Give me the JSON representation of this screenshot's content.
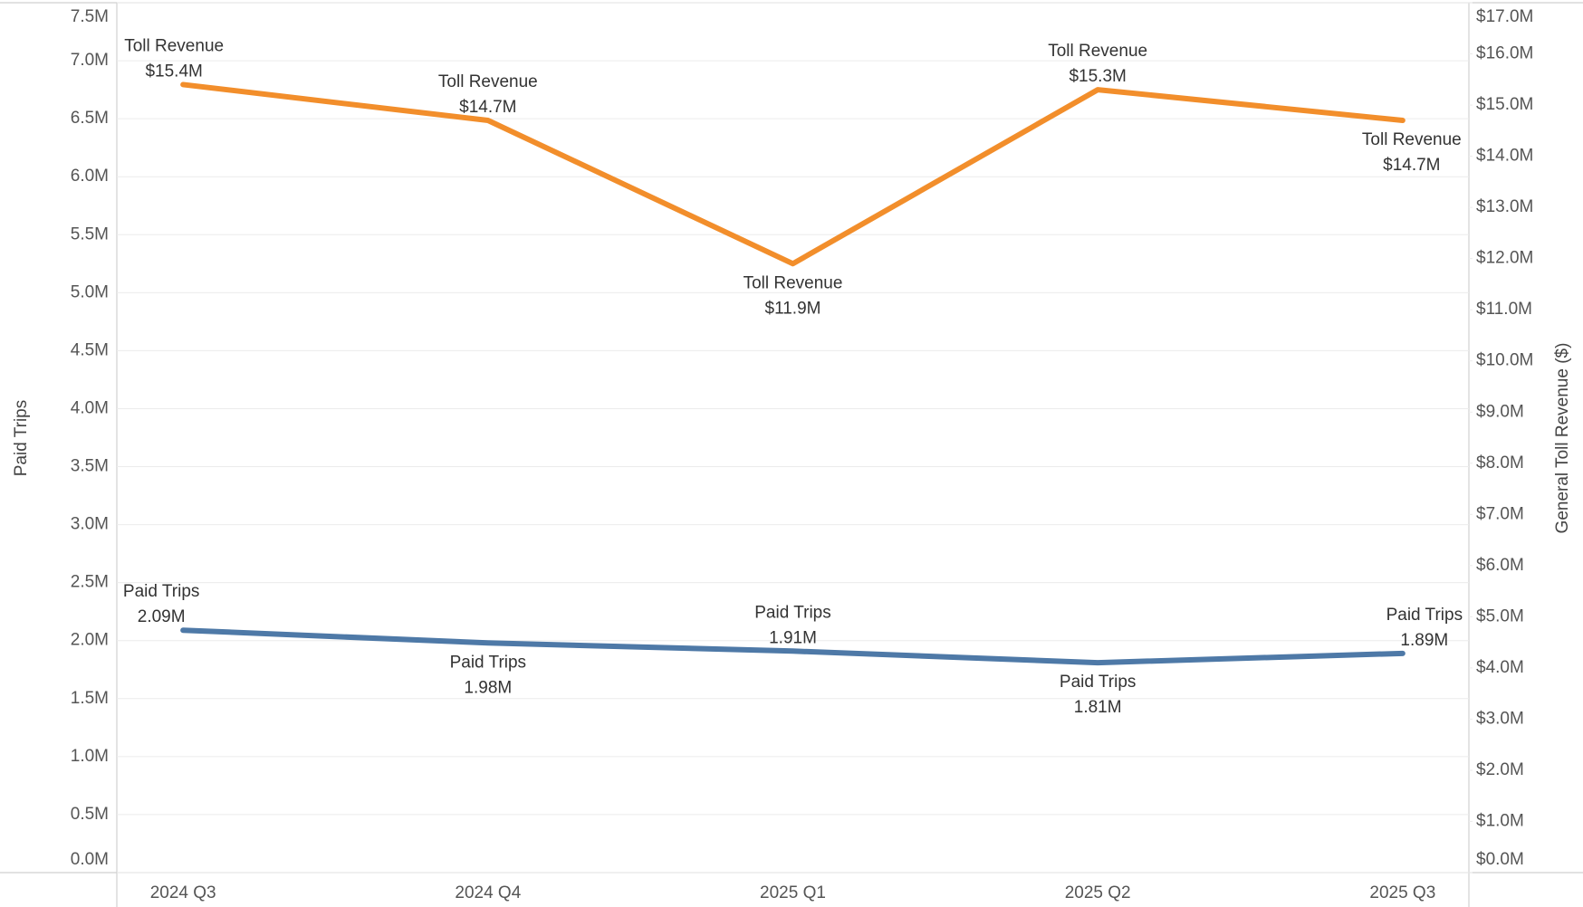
{
  "chart_data": {
    "type": "line",
    "categories": [
      "2024 Q3",
      "2024 Q4",
      "2025 Q1",
      "2025 Q2",
      "2025 Q3"
    ],
    "ylabel": "Paid Trips",
    "y2label": "General Toll Revenue ($)",
    "ylim": [
      0,
      7500000
    ],
    "yticks": [
      {
        "value": 0,
        "label": "0.0M"
      },
      {
        "value": 500000,
        "label": "0.5M"
      },
      {
        "value": 1000000,
        "label": "1.0M"
      },
      {
        "value": 1500000,
        "label": "1.5M"
      },
      {
        "value": 2000000,
        "label": "2.0M"
      },
      {
        "value": 2500000,
        "label": "2.5M"
      },
      {
        "value": 3000000,
        "label": "3.0M"
      },
      {
        "value": 3500000,
        "label": "3.5M"
      },
      {
        "value": 4000000,
        "label": "4.0M"
      },
      {
        "value": 4500000,
        "label": "4.5M"
      },
      {
        "value": 5000000,
        "label": "5.0M"
      },
      {
        "value": 5500000,
        "label": "5.5M"
      },
      {
        "value": 6000000,
        "label": "6.0M"
      },
      {
        "value": 6500000,
        "label": "6.5M"
      },
      {
        "value": 7000000,
        "label": "7.0M"
      },
      {
        "value": 7500000,
        "label": "7.5M"
      }
    ],
    "y2lim": [
      0,
      17000000
    ],
    "y2ticks": [
      {
        "value": 0,
        "label": "$0.0M"
      },
      {
        "value": 1000000,
        "label": "$1.0M"
      },
      {
        "value": 2000000,
        "label": "$2.0M"
      },
      {
        "value": 3000000,
        "label": "$3.0M"
      },
      {
        "value": 4000000,
        "label": "$4.0M"
      },
      {
        "value": 5000000,
        "label": "$5.0M"
      },
      {
        "value": 6000000,
        "label": "$6.0M"
      },
      {
        "value": 7000000,
        "label": "$7.0M"
      },
      {
        "value": 8000000,
        "label": "$8.0M"
      },
      {
        "value": 9000000,
        "label": "$9.0M"
      },
      {
        "value": 10000000,
        "label": "$10.0M"
      },
      {
        "value": 11000000,
        "label": "$11.0M"
      },
      {
        "value": 12000000,
        "label": "$12.0M"
      },
      {
        "value": 13000000,
        "label": "$13.0M"
      },
      {
        "value": 14000000,
        "label": "$14.0M"
      },
      {
        "value": 15000000,
        "label": "$15.0M"
      },
      {
        "value": 16000000,
        "label": "$16.0M"
      },
      {
        "value": 17000000,
        "label": "$17.0M"
      }
    ],
    "grid": true,
    "series": [
      {
        "name": "Paid Trips",
        "color": "#4e79a7",
        "values": [
          2090000,
          1980000,
          1910000,
          1810000,
          1890000
        ],
        "value_labels": [
          "2.09M",
          "1.98M",
          "1.91M",
          "1.81M",
          "1.89M"
        ]
      },
      {
        "name": "Toll Revenue",
        "color": "#f28e2b",
        "axis": "y2",
        "values": [
          15400000,
          14700000,
          11900000,
          15300000,
          14700000
        ],
        "value_labels": [
          "$15.4M",
          "$14.7M",
          "$11.9M",
          "$15.3M",
          "$14.7M"
        ]
      }
    ]
  }
}
